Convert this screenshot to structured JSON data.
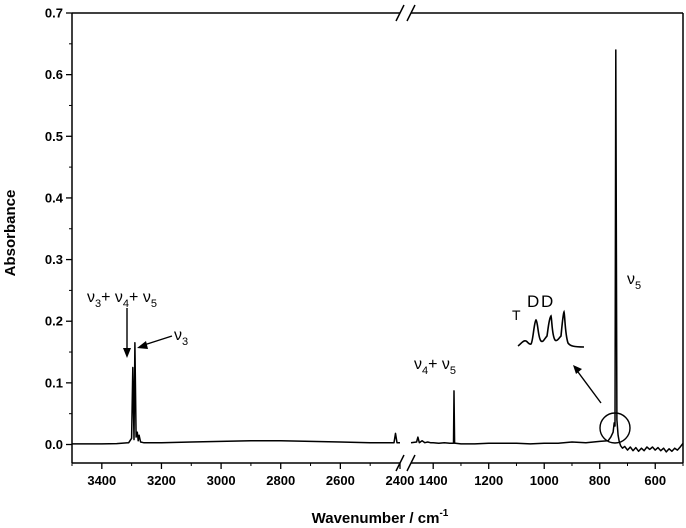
{
  "chart_data": {
    "type": "line",
    "xlabel": "Wavenumber / cm",
    "xlabel_sup": "-1",
    "ylabel": "Absorbance",
    "x_axis_segments": [
      {
        "range": [
          3500,
          2400
        ],
        "ticks": [
          3400,
          3200,
          3000,
          2800,
          2600,
          2400
        ]
      },
      {
        "range": [
          1480,
          500
        ],
        "ticks": [
          1400,
          1200,
          1000,
          800,
          600
        ]
      }
    ],
    "axis_break_between": [
      2400,
      1480
    ],
    "ylim": [
      -0.03,
      0.7
    ],
    "yticks": [
      0.0,
      0.1,
      0.2,
      0.3,
      0.4,
      0.5,
      0.6,
      0.7
    ],
    "ytick_labels": [
      "0.0",
      "0.1",
      "0.2",
      "0.3",
      "0.4",
      "0.5",
      "0.6",
      "0.7"
    ],
    "series": [
      {
        "x": [
          3500,
          3400,
          3350,
          3310,
          3300,
          3296,
          3292,
          3289,
          3285,
          3281,
          3278,
          3275,
          3270,
          3260,
          3200,
          3100,
          3000,
          2900,
          2800,
          2700,
          2600,
          2500,
          2440,
          2420,
          2415,
          2410,
          2400,
          1480,
          1460,
          1455,
          1450,
          1440,
          1430,
          1420,
          1410,
          1400,
          1380,
          1360,
          1340,
          1327,
          1325,
          1323,
          1320,
          1300,
          1250,
          1200,
          1150,
          1100,
          1050,
          1000,
          950,
          900,
          850,
          800,
          770,
          760,
          752,
          748,
          745,
          742,
          738,
          734,
          730,
          725,
          718,
          710,
          700,
          690,
          680,
          670,
          660,
          650,
          640,
          630,
          620,
          610,
          600,
          590,
          580,
          570,
          560,
          550,
          540,
          530,
          520,
          510,
          500
        ],
        "y": [
          0.001,
          0.001,
          0.0015,
          0.003,
          0.01,
          0.125,
          0.008,
          0.165,
          0.012,
          0.02,
          0.006,
          0.015,
          0.004,
          0.003,
          0.003,
          0.004,
          0.005,
          0.006,
          0.006,
          0.005,
          0.004,
          0.003,
          0.003,
          0.003,
          0.018,
          0.003,
          0.003,
          0.003,
          0.004,
          0.012,
          0.003,
          0.006,
          0.003,
          0.004,
          0.003,
          0.003,
          0.002,
          0.003,
          0.002,
          0.002,
          0.087,
          0.002,
          0.002,
          0.001,
          0.001,
          0.002,
          0.002,
          0.002,
          0.001,
          0.002,
          0.002,
          0.004,
          0.003,
          0.005,
          0.006,
          0.012,
          0.02,
          0.035,
          0.03,
          0.64,
          0.04,
          0.015,
          0.005,
          -0.002,
          -0.006,
          -0.003,
          -0.009,
          -0.004,
          -0.01,
          -0.005,
          -0.011,
          -0.006,
          -0.01,
          -0.004,
          -0.008,
          -0.004,
          -0.009,
          -0.005,
          -0.01,
          -0.006,
          -0.012,
          -0.007,
          -0.011,
          -0.006,
          -0.009,
          -0.004,
          0.002
        ]
      }
    ],
    "annotations": [
      {
        "base": "ν",
        "sub": "3",
        "mid1": "+ ν",
        "sub2": "4",
        "mid2": "+ ν",
        "sub3": "5"
      },
      {
        "base": "ν",
        "sub": "3"
      },
      {
        "base": "ν",
        "sub": "4",
        "mid1": "+ ν",
        "sub2": "5"
      },
      {
        "base": "ν",
        "sub": "5"
      }
    ],
    "inset_labels": [
      "T",
      "D",
      "D"
    ]
  }
}
